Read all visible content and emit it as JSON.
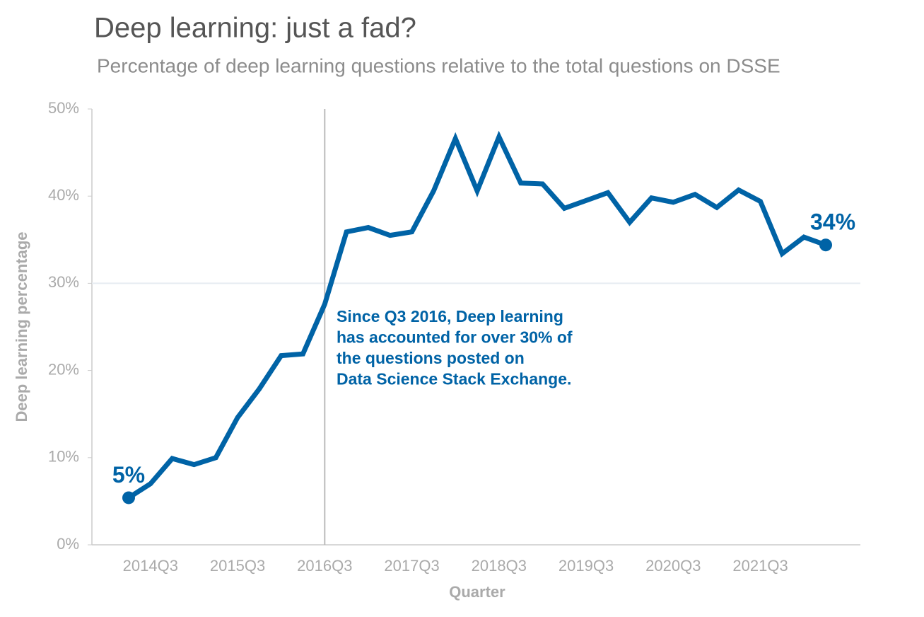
{
  "chart_data": {
    "type": "line",
    "title": "Deep learning: just a fad?",
    "subtitle": "Percentage of deep learning questions relative to the total questions on DSSE",
    "x_label": "Quarter",
    "y_label": "Deep learning percentage",
    "categories": [
      null,
      "2014Q3",
      null,
      null,
      null,
      "2015Q3",
      null,
      null,
      null,
      "2016Q3",
      null,
      null,
      null,
      "2017Q3",
      null,
      null,
      null,
      "2018Q3",
      null,
      null,
      null,
      "2019Q3",
      null,
      null,
      null,
      "2020Q3",
      null,
      null,
      null,
      "2021Q3",
      null,
      null,
      null
    ],
    "series": [
      {
        "name": "Deep learning percentage",
        "color": "#0063a6",
        "values": [
          5.4,
          7.0,
          9.9,
          9.2,
          10.0,
          14.6,
          17.9,
          21.7,
          21.9,
          27.6,
          35.9,
          36.4,
          35.5,
          35.9,
          40.6,
          46.6,
          40.6,
          46.8,
          41.5,
          41.4,
          38.6,
          39.5,
          40.4,
          37.0,
          39.8,
          39.3,
          40.2,
          38.7,
          40.7,
          39.4,
          33.4,
          35.3,
          34.4
        ],
        "value_labels": [
          "5%",
          null,
          null,
          null,
          null,
          null,
          null,
          null,
          null,
          null,
          null,
          null,
          null,
          null,
          null,
          null,
          null,
          null,
          null,
          null,
          null,
          null,
          null,
          null,
          null,
          null,
          null,
          null,
          null,
          null,
          null,
          null,
          "34%"
        ]
      }
    ],
    "ylim": [
      0,
      50
    ],
    "yticks": [
      {
        "value": 0,
        "label": "0%"
      },
      {
        "value": 10,
        "label": "10%"
      },
      {
        "value": 20,
        "label": "20%"
      },
      {
        "value": 30,
        "label": "30%"
      },
      {
        "value": 40,
        "label": "40%"
      },
      {
        "value": 50,
        "label": "50%"
      }
    ],
    "hline": 30,
    "vline": "2016Q3",
    "annotation": [
      "Since Q3 2016, Deep learning",
      "has accounted for over 30% of",
      "the questions posted on",
      "Data Science Stack Exchange."
    ]
  }
}
